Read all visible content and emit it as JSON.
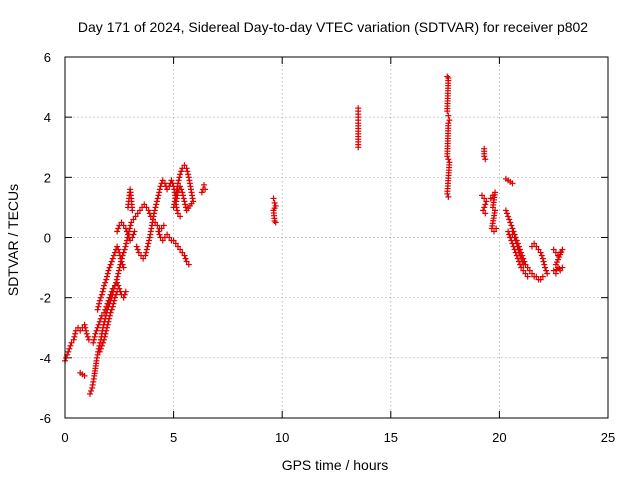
{
  "chart_data": {
    "type": "scatter",
    "title": "Day 171 of 2024, Sidereal Day-to-day VTEC variation (SDTVAR) for receiver p802",
    "xlabel": "GPS time / hours",
    "ylabel": "SDTVAR / TECUs",
    "xlim": [
      0,
      25
    ],
    "ylim": [
      -6,
      6
    ],
    "grid": true,
    "marker": "+",
    "color": "#e00000",
    "xticks": [
      0,
      5,
      10,
      15,
      20,
      25
    ],
    "yticks": [
      -6,
      -4,
      -2,
      0,
      2,
      4,
      6
    ],
    "xtick_labels": [
      "0",
      "5",
      "10",
      "15",
      "20",
      "25"
    ],
    "ytick_labels": [
      "-6",
      "-4",
      "-2",
      "0",
      "2",
      "4",
      "6"
    ],
    "series": [
      {
        "name": "SDTVAR",
        "segments": [
          [
            [
              0.0,
              -4.1
            ],
            [
              0.1,
              -3.9
            ],
            [
              0.2,
              -3.7
            ],
            [
              0.3,
              -3.5
            ],
            [
              0.4,
              -3.4
            ],
            [
              0.5,
              -3.1
            ],
            [
              0.6,
              -3.0
            ],
            [
              0.7,
              -3.1
            ],
            [
              0.8,
              -3.0
            ],
            [
              0.9,
              -2.9
            ],
            [
              1.0,
              -3.2
            ],
            [
              1.1,
              -3.4
            ]
          ],
          [
            [
              0.7,
              -4.5
            ],
            [
              0.8,
              -4.55
            ],
            [
              0.9,
              -4.6
            ]
          ],
          [
            [
              1.15,
              -5.2
            ],
            [
              1.25,
              -5.0
            ],
            [
              1.35,
              -4.6
            ],
            [
              1.45,
              -4.1
            ],
            [
              1.55,
              -3.7
            ],
            [
              1.65,
              -3.4
            ],
            [
              1.75,
              -3.0
            ],
            [
              1.85,
              -2.7
            ],
            [
              1.95,
              -2.4
            ],
            [
              2.05,
              -2.2
            ],
            [
              2.15,
              -2.0
            ],
            [
              2.25,
              -1.7
            ],
            [
              2.35,
              -1.5
            ],
            [
              2.45,
              -1.2
            ],
            [
              2.55,
              -0.9
            ],
            [
              2.65,
              -0.6
            ],
            [
              2.75,
              -0.4
            ],
            [
              2.85,
              -0.1
            ],
            [
              2.95,
              0.2
            ],
            [
              3.05,
              0.5
            ],
            [
              3.15,
              0.6
            ],
            [
              3.25,
              0.7
            ],
            [
              3.35,
              0.8
            ],
            [
              3.45,
              0.9
            ],
            [
              3.55,
              1.0
            ],
            [
              3.65,
              1.1
            ],
            [
              3.75,
              1.0
            ],
            [
              3.85,
              0.9
            ],
            [
              3.95,
              0.7
            ],
            [
              4.05,
              0.6
            ],
            [
              4.15,
              0.5
            ],
            [
              4.25,
              0.4
            ],
            [
              4.35,
              0.3
            ],
            [
              4.45,
              0.3
            ],
            [
              4.55,
              0.4
            ]
          ],
          [
            [
              1.3,
              -3.5
            ],
            [
              1.4,
              -3.2
            ],
            [
              1.5,
              -3.0
            ],
            [
              1.6,
              -2.8
            ],
            [
              1.7,
              -2.6
            ],
            [
              1.8,
              -2.5
            ],
            [
              1.9,
              -2.3
            ],
            [
              2.0,
              -2.1
            ],
            [
              2.1,
              -1.9
            ],
            [
              2.2,
              -1.7
            ],
            [
              2.3,
              -1.6
            ],
            [
              2.4,
              -1.5
            ],
            [
              2.5,
              -1.7
            ],
            [
              2.6,
              -1.9
            ],
            [
              2.7,
              -2.0
            ],
            [
              2.8,
              -1.8
            ]
          ],
          [
            [
              1.5,
              -2.4
            ],
            [
              1.6,
              -2.1
            ],
            [
              1.7,
              -1.9
            ],
            [
              1.8,
              -1.6
            ],
            [
              1.9,
              -1.4
            ],
            [
              2.0,
              -1.1
            ],
            [
              2.1,
              -0.9
            ],
            [
              2.2,
              -0.7
            ],
            [
              2.3,
              -0.5
            ],
            [
              2.4,
              -0.3
            ],
            [
              2.5,
              -0.5
            ],
            [
              2.6,
              -0.8
            ],
            [
              2.7,
              -1.0
            ]
          ],
          [
            [
              1.6,
              -3.8
            ],
            [
              1.7,
              -3.6
            ],
            [
              1.8,
              -3.4
            ],
            [
              1.9,
              -3.1
            ],
            [
              2.0,
              -2.8
            ],
            [
              2.1,
              -2.5
            ],
            [
              2.2,
              -2.3
            ],
            [
              2.3,
              -2.0
            ],
            [
              2.4,
              -1.8
            ]
          ],
          [
            [
              2.4,
              0.2
            ],
            [
              2.5,
              0.4
            ],
            [
              2.6,
              0.5
            ],
            [
              2.7,
              0.4
            ],
            [
              2.8,
              0.3
            ],
            [
              2.9,
              0.1
            ],
            [
              3.0,
              -0.1
            ],
            [
              3.1,
              0.0
            ],
            [
              3.2,
              0.2
            ]
          ],
          [
            [
              2.9,
              1.0
            ],
            [
              2.95,
              1.3
            ],
            [
              3.0,
              1.6
            ],
            [
              3.05,
              1.3
            ],
            [
              3.1,
              0.9
            ]
          ],
          [
            [
              3.3,
              -0.3
            ],
            [
              3.4,
              -0.5
            ],
            [
              3.5,
              -0.6
            ],
            [
              3.6,
              -0.7
            ],
            [
              3.7,
              -0.6
            ],
            [
              3.8,
              -0.3
            ],
            [
              3.9,
              0.0
            ],
            [
              4.0,
              0.4
            ],
            [
              4.1,
              0.8
            ],
            [
              4.2,
              1.1
            ],
            [
              4.3,
              1.4
            ],
            [
              4.4,
              1.7
            ],
            [
              4.5,
              1.9
            ],
            [
              4.6,
              1.8
            ],
            [
              4.7,
              1.6
            ],
            [
              4.8,
              1.7
            ],
            [
              4.9,
              1.9
            ],
            [
              5.0,
              1.7
            ],
            [
              5.1,
              1.3
            ]
          ],
          [
            [
              4.3,
              0.2
            ],
            [
              4.4,
              0.0
            ],
            [
              4.5,
              -0.1
            ],
            [
              4.6,
              0.0
            ],
            [
              4.7,
              0.1
            ],
            [
              4.8,
              0.0
            ],
            [
              4.9,
              -0.1
            ],
            [
              5.0,
              -0.1
            ],
            [
              5.1,
              -0.2
            ],
            [
              5.2,
              -0.3
            ],
            [
              5.3,
              -0.4
            ],
            [
              5.4,
              -0.5
            ],
            [
              5.5,
              -0.6
            ],
            [
              5.6,
              -0.8
            ],
            [
              5.7,
              -0.9
            ]
          ],
          [
            [
              5.0,
              1.0
            ],
            [
              5.1,
              1.4
            ],
            [
              5.2,
              1.8
            ],
            [
              5.3,
              2.1
            ],
            [
              5.4,
              2.3
            ],
            [
              5.5,
              2.4
            ],
            [
              5.6,
              2.3
            ],
            [
              5.7,
              2.0
            ],
            [
              5.8,
              1.6
            ],
            [
              5.9,
              1.2
            ],
            [
              5.6,
              0.9
            ],
            [
              5.5,
              1.2
            ],
            [
              5.4,
              1.5
            ],
            [
              5.3,
              1.7
            ],
            [
              5.2,
              1.5
            ],
            [
              5.1,
              1.1
            ],
            [
              5.2,
              0.8
            ],
            [
              5.3,
              0.7
            ]
          ],
          [
            [
              6.3,
              1.5
            ],
            [
              6.35,
              1.6
            ],
            [
              6.4,
              1.75
            ],
            [
              6.45,
              1.6
            ]
          ],
          [
            [
              9.6,
              1.3
            ],
            [
              9.65,
              1.15
            ],
            [
              9.7,
              1.05
            ],
            [
              9.6,
              0.9
            ],
            [
              9.65,
              0.55
            ],
            [
              9.7,
              0.5
            ]
          ],
          [
            [
              13.5,
              4.3
            ],
            [
              13.5,
              4.0
            ],
            [
              13.5,
              3.8
            ],
            [
              13.5,
              3.0
            ]
          ],
          [
            [
              17.6,
              5.35
            ],
            [
              17.65,
              5.3
            ],
            [
              17.6,
              4.2
            ],
            [
              17.65,
              4.05
            ],
            [
              17.7,
              3.9
            ],
            [
              17.65,
              3.8
            ],
            [
              17.6,
              2.7
            ],
            [
              17.65,
              2.6
            ],
            [
              17.7,
              2.5
            ],
            [
              17.6,
              1.45
            ],
            [
              17.65,
              1.35
            ]
          ],
          [
            [
              19.3,
              2.95
            ],
            [
              19.3,
              2.7
            ],
            [
              19.35,
              2.6
            ]
          ],
          [
            [
              19.2,
              1.4
            ],
            [
              19.3,
              1.3
            ],
            [
              19.4,
              1.2
            ],
            [
              19.25,
              0.9
            ],
            [
              19.35,
              0.8
            ]
          ],
          [
            [
              19.6,
              1.3
            ],
            [
              19.7,
              1.4
            ],
            [
              19.8,
              1.5
            ],
            [
              19.7,
              1.0
            ],
            [
              19.8,
              0.9
            ],
            [
              19.65,
              0.3
            ],
            [
              19.75,
              0.2
            ],
            [
              19.85,
              0.3
            ]
          ],
          [
            [
              20.3,
              1.95
            ],
            [
              20.4,
              1.9
            ],
            [
              20.5,
              1.85
            ],
            [
              20.6,
              1.8
            ]
          ],
          [
            [
              20.3,
              0.9
            ],
            [
              20.4,
              0.7
            ],
            [
              20.5,
              0.5
            ],
            [
              20.6,
              0.3
            ],
            [
              20.7,
              0.1
            ],
            [
              20.8,
              -0.1
            ],
            [
              20.9,
              -0.3
            ],
            [
              21.0,
              -0.5
            ],
            [
              21.1,
              -0.7
            ],
            [
              21.2,
              -0.9
            ],
            [
              21.3,
              -1.0
            ],
            [
              21.4,
              -1.1
            ],
            [
              21.5,
              -1.2
            ],
            [
              21.6,
              -1.3
            ],
            [
              21.7,
              -1.3
            ],
            [
              21.8,
              -1.4
            ],
            [
              21.9,
              -1.4
            ],
            [
              22.0,
              -1.3
            ]
          ],
          [
            [
              20.4,
              0.2
            ],
            [
              20.5,
              0.0
            ],
            [
              20.6,
              -0.2
            ],
            [
              20.7,
              -0.4
            ],
            [
              20.8,
              -0.6
            ],
            [
              20.9,
              -0.8
            ],
            [
              21.0,
              -1.0
            ],
            [
              21.1,
              -1.1
            ],
            [
              21.2,
              -1.2
            ],
            [
              21.3,
              -1.3
            ]
          ],
          [
            [
              20.5,
              0.0
            ],
            [
              20.6,
              0.1
            ],
            [
              20.7,
              0.0
            ],
            [
              20.8,
              -0.2
            ],
            [
              20.9,
              -0.5
            ],
            [
              21.0,
              -0.7
            ],
            [
              21.1,
              -0.9
            ]
          ],
          [
            [
              21.5,
              -0.3
            ],
            [
              21.6,
              -0.2
            ],
            [
              21.7,
              -0.3
            ],
            [
              21.8,
              -0.4
            ],
            [
              21.9,
              -0.5
            ],
            [
              22.0,
              -0.7
            ],
            [
              22.1,
              -1.0
            ],
            [
              22.2,
              -1.2
            ]
          ],
          [
            [
              22.5,
              -0.4
            ],
            [
              22.6,
              -0.5
            ],
            [
              22.7,
              -0.6
            ],
            [
              22.8,
              -0.5
            ],
            [
              22.9,
              -0.4
            ],
            [
              22.6,
              -0.9
            ],
            [
              22.7,
              -1.0
            ],
            [
              22.8,
              -1.1
            ],
            [
              22.9,
              -1.0
            ],
            [
              22.5,
              -1.1
            ],
            [
              22.6,
              -1.2
            ]
          ]
        ]
      }
    ]
  }
}
